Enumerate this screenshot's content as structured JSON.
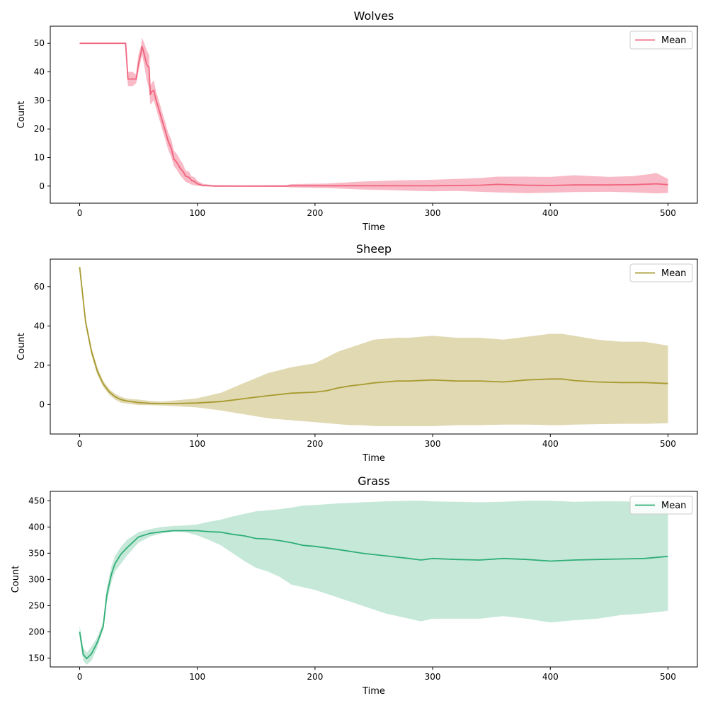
{
  "chart_data": [
    {
      "type": "line",
      "title": "Wolves",
      "xlabel": "Time",
      "ylabel": "Count",
      "xlim": [
        -25,
        525
      ],
      "ylim": [
        -6,
        56
      ],
      "xticks": [
        0,
        100,
        200,
        300,
        400,
        500
      ],
      "yticks": [
        0,
        10,
        20,
        30,
        40,
        50
      ],
      "tick_labels_x": [
        "0",
        "100",
        "200",
        "300",
        "400",
        "500"
      ],
      "tick_labels_y": [
        "0",
        "10",
        "20",
        "30",
        "40",
        "50"
      ],
      "legend": {
        "label": "Mean",
        "position": "top-right"
      },
      "grid": false,
      "color": "#f0637d",
      "band_color": "#f7b3c0",
      "series": [
        {
          "name": "Mean",
          "x": [
            0,
            10,
            20,
            30,
            39,
            40,
            41,
            45,
            48,
            50,
            52,
            53,
            55,
            57,
            59,
            60,
            61,
            63,
            65,
            68,
            70,
            73,
            75,
            78,
            80,
            83,
            85,
            88,
            90,
            93,
            95,
            98,
            100,
            103,
            105,
            110,
            115,
            120,
            140,
            175,
            180,
            210,
            240,
            270,
            300,
            320,
            340,
            355,
            380,
            400,
            420,
            450,
            470,
            485,
            490,
            500
          ],
          "mean": [
            50,
            50,
            50,
            50,
            50,
            44,
            37.5,
            37.5,
            37.5,
            43,
            46.5,
            49,
            46,
            42.5,
            41.5,
            32,
            33,
            33.5,
            30,
            26,
            23,
            19,
            16,
            13,
            9.5,
            8,
            6.5,
            5,
            3.5,
            3,
            2,
            1.5,
            0.8,
            0.4,
            0.2,
            0.1,
            0,
            0,
            0,
            0,
            0.1,
            0.1,
            0.1,
            0.1,
            0.1,
            0.2,
            0.3,
            0.6,
            0.3,
            0.2,
            0.4,
            0.4,
            0.5,
            0.7,
            0.8,
            0.5
          ],
          "lower": [
            50,
            50,
            50,
            50,
            50,
            42,
            35,
            35,
            36,
            40,
            44,
            46,
            42,
            37,
            34,
            28.5,
            29,
            30,
            27,
            23,
            20,
            16,
            13,
            10,
            7,
            5.5,
            4,
            2.5,
            1.5,
            1,
            0.5,
            0.2,
            0.1,
            0,
            -0.1,
            -0.1,
            -0.2,
            -0.2,
            -0.2,
            -0.3,
            -0.5,
            -0.7,
            -1.2,
            -1.5,
            -1.8,
            -1.7,
            -2,
            -2.2,
            -2.5,
            -2.3,
            -2.1,
            -2,
            -2.2,
            -2.5,
            -2.6,
            -2.4
          ],
          "upper": [
            50,
            50,
            50,
            50,
            50,
            46,
            40,
            40,
            39,
            46,
            49,
            52,
            50,
            47.5,
            46,
            35,
            36,
            37,
            33,
            29,
            26,
            22,
            19,
            16,
            12.5,
            11,
            9.5,
            7.5,
            5.5,
            5,
            3.5,
            3,
            1.8,
            1.2,
            0.8,
            0.5,
            0.3,
            0.3,
            0.2,
            0.3,
            0.7,
            0.9,
            1.6,
            2,
            2.2,
            2.5,
            2.8,
            3.3,
            3.3,
            3.2,
            3.8,
            3.2,
            3.5,
            4.2,
            4.6,
            2.5
          ]
        }
      ]
    },
    {
      "type": "line",
      "title": "Sheep",
      "xlabel": "Time",
      "ylabel": "Count",
      "xlim": [
        -25,
        525
      ],
      "ylim": [
        -15,
        74
      ],
      "xticks": [
        0,
        100,
        200,
        300,
        400,
        500
      ],
      "yticks": [
        0,
        20,
        40,
        60
      ],
      "tick_labels_x": [
        "0",
        "100",
        "200",
        "300",
        "400",
        "500"
      ],
      "tick_labels_y": [
        "0",
        "20",
        "40",
        "60"
      ],
      "legend": {
        "label": "Mean",
        "position": "top-right"
      },
      "grid": false,
      "color": "#a89a2f",
      "band_color": "#ddd5aa",
      "series": [
        {
          "name": "Mean",
          "x": [
            0,
            5,
            10,
            15,
            20,
            25,
            30,
            35,
            40,
            50,
            60,
            70,
            80,
            100,
            120,
            140,
            160,
            180,
            200,
            210,
            220,
            230,
            240,
            250,
            260,
            270,
            280,
            300,
            320,
            340,
            360,
            380,
            400,
            410,
            420,
            440,
            460,
            480,
            500
          ],
          "mean": [
            70,
            42,
            27,
            17,
            10.5,
            6.5,
            4,
            2.5,
            1.8,
            1,
            0.6,
            0.5,
            0.5,
            0.8,
            1.5,
            3,
            4.5,
            5.8,
            6.3,
            7,
            8.5,
            9.5,
            10.2,
            11,
            11.5,
            12,
            12,
            12.5,
            12,
            12,
            11.5,
            12.5,
            13,
            13,
            12.2,
            11.5,
            11.2,
            11.2,
            10.7
          ],
          "lower": [
            70,
            40,
            25,
            15,
            9,
            5,
            2.5,
            1,
            0.5,
            -0.3,
            -0.3,
            -0.5,
            -0.8,
            -1.5,
            -3,
            -5,
            -7,
            -8,
            -9,
            -9.5,
            -10,
            -10.5,
            -10.5,
            -11,
            -11,
            -11,
            -11,
            -11,
            -10.5,
            -10.5,
            -10.2,
            -10.2,
            -10.5,
            -10.5,
            -10.2,
            -10,
            -9.8,
            -9.8,
            -9.5
          ],
          "upper": [
            70,
            44,
            29,
            19,
            12,
            8,
            5.5,
            4,
            3,
            2.5,
            1.8,
            1.5,
            2,
            3.2,
            6,
            11,
            16,
            19,
            21,
            24,
            27,
            29,
            31,
            33,
            33.5,
            34,
            34,
            35,
            34,
            34,
            33,
            34.5,
            36,
            36,
            35,
            33,
            32,
            32,
            30
          ]
        }
      ]
    },
    {
      "type": "line",
      "title": "Grass",
      "xlabel": "Time",
      "ylabel": "Count",
      "xlim": [
        -25,
        525
      ],
      "ylim": [
        133,
        468
      ],
      "xticks": [
        0,
        100,
        200,
        300,
        400,
        500
      ],
      "yticks": [
        150,
        200,
        250,
        300,
        350,
        400,
        450
      ],
      "tick_labels_x": [
        "0",
        "100",
        "200",
        "300",
        "400",
        "500"
      ],
      "tick_labels_y": [
        "150",
        "200",
        "250",
        "300",
        "350",
        "400",
        "450"
      ],
      "legend": {
        "label": "Mean",
        "position": "top-right"
      },
      "grid": false,
      "color": "#2fae77",
      "band_color": "#c0e6d5",
      "series": [
        {
          "name": "Mean",
          "x": [
            0,
            3,
            6,
            10,
            15,
            20,
            23,
            27,
            30,
            35,
            40,
            50,
            60,
            70,
            80,
            90,
            100,
            110,
            120,
            130,
            140,
            150,
            160,
            170,
            180,
            190,
            200,
            220,
            240,
            260,
            280,
            290,
            300,
            320,
            340,
            360,
            380,
            400,
            420,
            440,
            460,
            480,
            500
          ],
          "mean": [
            200,
            157,
            149,
            158,
            180,
            210,
            270,
            310,
            330,
            348,
            360,
            381,
            388,
            391,
            393,
            393,
            393,
            391,
            390,
            386,
            383,
            378,
            377,
            374,
            370,
            365,
            363,
            357,
            350,
            345,
            340,
            337,
            340,
            338,
            337,
            340,
            338,
            335,
            337,
            338,
            339,
            340,
            344
          ],
          "lower": [
            190,
            145,
            137,
            145,
            170,
            205,
            255,
            295,
            315,
            330,
            345,
            370,
            382,
            388,
            391,
            390,
            384,
            375,
            365,
            350,
            335,
            322,
            315,
            305,
            290,
            285,
            280,
            265,
            250,
            235,
            225,
            220,
            225,
            225,
            225,
            230,
            225,
            218,
            222,
            225,
            232,
            235,
            240
          ],
          "upper": [
            212,
            170,
            160,
            172,
            190,
            220,
            285,
            325,
            345,
            362,
            375,
            390,
            396,
            400,
            402,
            403,
            405,
            410,
            414,
            420,
            425,
            430,
            432,
            434,
            437,
            441,
            442,
            445,
            447,
            449,
            450,
            450,
            449,
            448,
            447,
            448,
            450,
            450,
            448,
            449,
            449,
            448,
            448
          ]
        }
      ]
    }
  ]
}
